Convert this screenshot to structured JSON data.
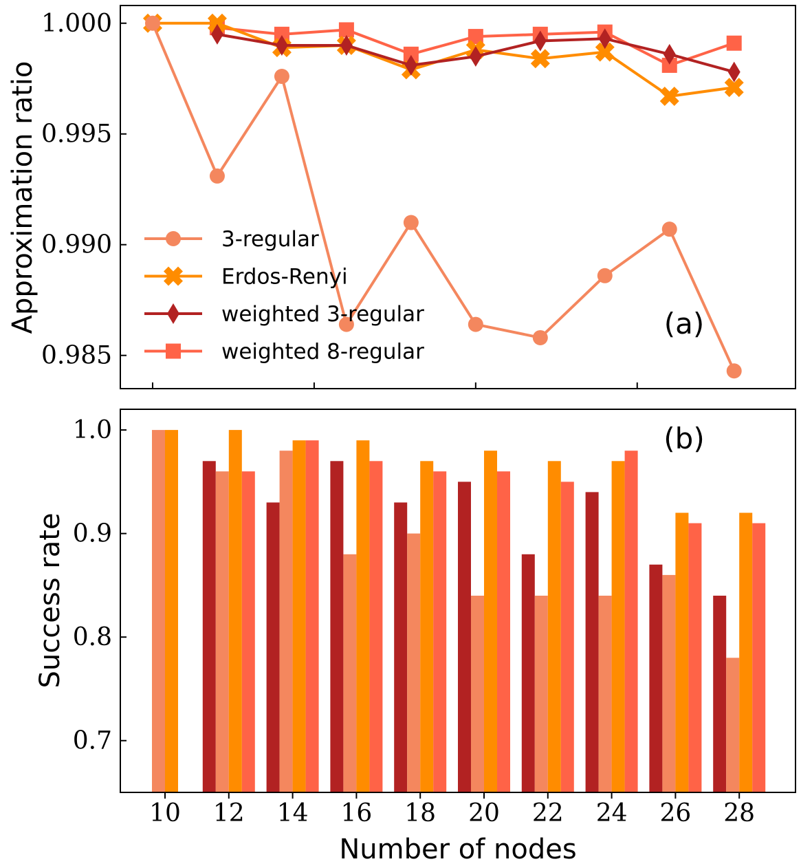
{
  "chart_data": [
    {
      "type": "line",
      "panel_label": "(a)",
      "xlabel": "",
      "ylabel": "Approximation ratio",
      "x": [
        10,
        12,
        14,
        16,
        18,
        20,
        22,
        24,
        26,
        28
      ],
      "ylim": [
        0.9835,
        1.0008
      ],
      "yticks": [
        0.985,
        0.99,
        0.995,
        1.0
      ],
      "ytick_labels": [
        "0.985",
        "0.990",
        "0.995",
        "1.000"
      ],
      "legend_position": "lower-left",
      "series": [
        {
          "name": "3-regular",
          "marker": "circle",
          "color": "#F4875E",
          "values": [
            1.0,
            0.9931,
            0.9976,
            0.9864,
            0.991,
            0.9864,
            0.9858,
            0.9886,
            0.9907,
            0.9843
          ]
        },
        {
          "name": "Erdos-Renyi",
          "marker": "x",
          "color": "#FF8C00",
          "values": [
            1.0,
            1.0,
            0.9989,
            0.999,
            0.9979,
            0.9988,
            0.9984,
            0.9987,
            0.9967,
            0.9971
          ]
        },
        {
          "name": "weighted 3-regular",
          "marker": "diamond",
          "color": "#B22222",
          "values": [
            null,
            0.9995,
            0.999,
            0.999,
            0.9981,
            0.9985,
            0.9992,
            0.9993,
            0.9986,
            0.9978
          ]
        },
        {
          "name": "weighted 8-regular",
          "marker": "square",
          "color": "#FF6347",
          "values": [
            null,
            0.9998,
            0.9995,
            0.9997,
            0.9986,
            0.9994,
            0.9995,
            0.9996,
            0.9981,
            0.9991
          ]
        }
      ]
    },
    {
      "type": "bar",
      "panel_label": "(b)",
      "xlabel": "Number of nodes",
      "ylabel": "Success rate",
      "categories": [
        "10",
        "12",
        "14",
        "16",
        "18",
        "20",
        "22",
        "24",
        "26",
        "28"
      ],
      "ylim": [
        0.65,
        1.02
      ],
      "yticks": [
        0.7,
        0.8,
        0.9,
        1.0
      ],
      "ytick_labels": [
        "0.7",
        "0.8",
        "0.9",
        "1.0"
      ],
      "series": [
        {
          "name": "weighted 3-regular",
          "color": "#B22222",
          "values": [
            null,
            0.97,
            0.93,
            0.97,
            0.93,
            0.95,
            0.88,
            0.94,
            0.87,
            0.84
          ]
        },
        {
          "name": "3-regular",
          "color": "#F4875E",
          "values": [
            1.0,
            0.96,
            0.98,
            0.88,
            0.9,
            0.84,
            0.84,
            0.84,
            0.86,
            0.78
          ]
        },
        {
          "name": "Erdos-Renyi",
          "color": "#FF8C00",
          "values": [
            1.0,
            1.0,
            0.99,
            0.99,
            0.97,
            0.98,
            0.97,
            0.97,
            0.92,
            0.92
          ]
        },
        {
          "name": "weighted 8-regular",
          "color": "#FF6347",
          "values": [
            null,
            0.96,
            0.99,
            0.97,
            0.96,
            0.96,
            0.95,
            0.98,
            0.91,
            0.91
          ]
        }
      ]
    }
  ]
}
